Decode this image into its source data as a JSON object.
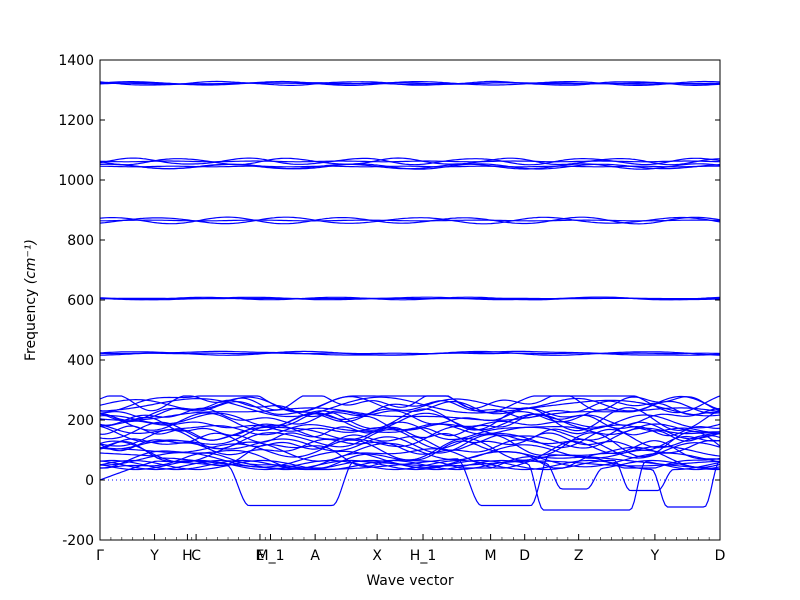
{
  "chart_data": {
    "type": "line",
    "xlabel": "Wave vector",
    "ylabel": "Frequency",
    "ylabel_unit": "(cm⁻¹)",
    "ylim": [
      -200,
      1400
    ],
    "yticks": [
      -200,
      0,
      200,
      400,
      600,
      800,
      1000,
      1200,
      1400
    ],
    "xlim": [
      0,
      1
    ],
    "high_symmetry_points": [
      {
        "label": "Γ",
        "x": 0.0
      },
      {
        "label": "Y",
        "x": 0.088
      },
      {
        "label": "H",
        "x": 0.141
      },
      {
        "label": "C",
        "x": 0.155
      },
      {
        "label": "E",
        "x": 0.258
      },
      {
        "label": "M_1",
        "x": 0.275
      },
      {
        "label": "A",
        "x": 0.347
      },
      {
        "label": "X",
        "x": 0.447
      },
      {
        "label": "H_1",
        "x": 0.521
      },
      {
        "label": "M",
        "x": 0.63
      },
      {
        "label": "D",
        "x": 0.685
      },
      {
        "label": "Z",
        "x": 0.772
      },
      {
        "label": "Y",
        "x": 0.895
      },
      {
        "label": "D",
        "x": 1.0
      }
    ],
    "zero_line": true,
    "line_color": "#0000ff",
    "band_groups": [
      {
        "center": 1322,
        "count": 4,
        "spread": 6
      },
      {
        "center": 1062,
        "count": 3,
        "spread": 10
      },
      {
        "center": 1045,
        "count": 3,
        "spread": 8
      },
      {
        "center": 865,
        "count": 3,
        "spread": 10
      },
      {
        "center": 605,
        "count": 3,
        "spread": 4
      },
      {
        "center": 422,
        "count": 3,
        "spread": 6
      }
    ],
    "low_band_range": [
      40,
      280
    ],
    "low_band_count": 26,
    "acoustic_dips": [
      {
        "x_start": 0.205,
        "x_end": 0.41,
        "min": -85
      },
      {
        "x_start": 0.575,
        "x_end": 0.725,
        "min": -85
      },
      {
        "x_start": 0.72,
        "x_end": 0.81,
        "min": -30
      },
      {
        "x_start": 0.69,
        "x_end": 0.88,
        "min": -100
      },
      {
        "x_start": 0.83,
        "x_end": 0.925,
        "min": -35
      },
      {
        "x_start": 0.89,
        "x_end": 1.0,
        "min": -90
      }
    ]
  }
}
